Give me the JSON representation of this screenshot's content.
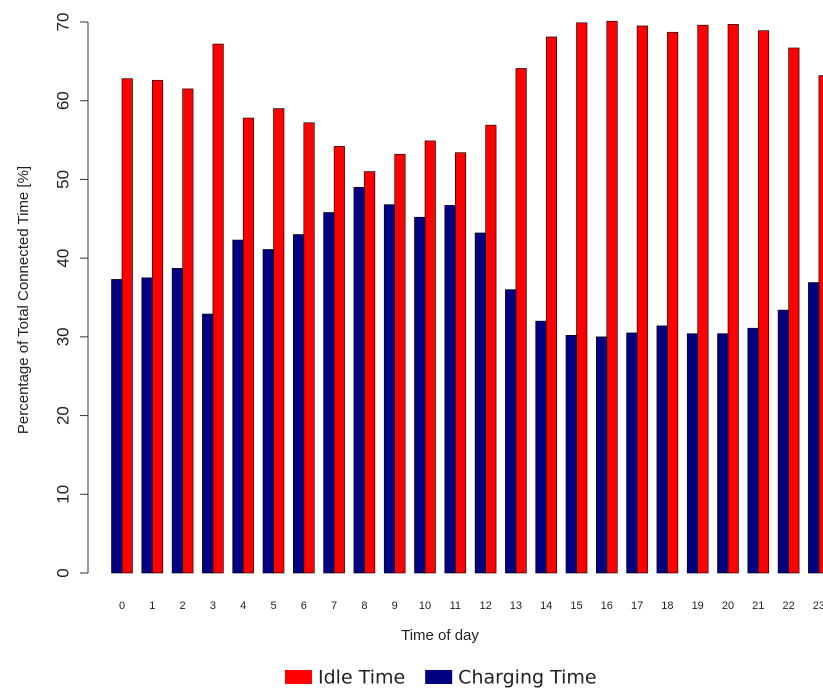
{
  "chart_data": {
    "type": "bar",
    "x_label": "Time of day",
    "y_label": "Percentage of Total Connected Time [%]",
    "categories": [
      "0",
      "1",
      "2",
      "3",
      "4",
      "5",
      "6",
      "7",
      "8",
      "9",
      "10",
      "11",
      "12",
      "13",
      "14",
      "15",
      "16",
      "17",
      "18",
      "19",
      "20",
      "21",
      "22",
      "23"
    ],
    "series": [
      {
        "name": "Idle Time",
        "color": "#ff0000",
        "values": [
          62.8,
          62.6,
          61.5,
          67.2,
          57.8,
          59.0,
          57.2,
          54.2,
          51.0,
          53.2,
          54.9,
          53.4,
          56.9,
          64.1,
          68.1,
          69.9,
          70.1,
          69.5,
          68.7,
          69.6,
          69.7,
          68.9,
          66.7,
          63.2
        ]
      },
      {
        "name": "Charging Time",
        "color": "#000080",
        "values": [
          37.3,
          37.5,
          38.7,
          32.9,
          42.3,
          41.1,
          43.0,
          45.8,
          49.0,
          46.8,
          45.2,
          46.7,
          43.2,
          36.0,
          32.0,
          30.2,
          30.0,
          30.5,
          31.4,
          30.4,
          30.4,
          31.1,
          33.4,
          36.9
        ]
      }
    ],
    "ylim": [
      0,
      70
    ],
    "yticks": [
      0,
      10,
      20,
      30,
      40,
      50,
      60,
      70
    ],
    "legend": "bottom"
  }
}
